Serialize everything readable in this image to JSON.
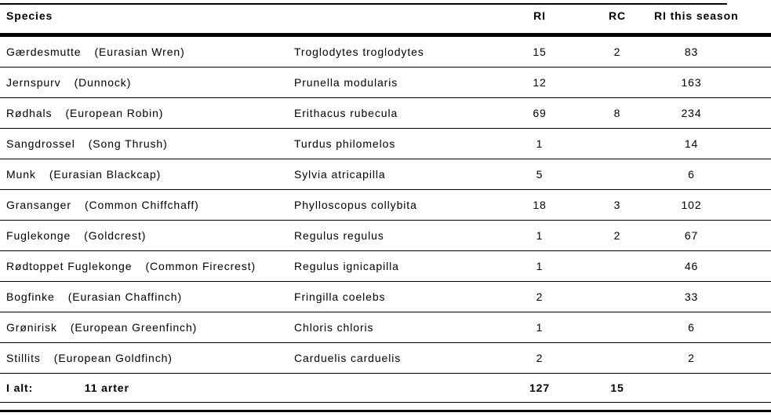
{
  "colors": {
    "background": "#ffffff",
    "text": "#000000",
    "rule": "#000000"
  },
  "table": {
    "columns": {
      "species": "Species",
      "scientific": "",
      "ri": "RI",
      "rc": "RC",
      "ri_season": "RI this season"
    },
    "rows": [
      {
        "danish": "Gærdesmutte",
        "english": "(Eurasian Wren)",
        "scientific": "Troglodytes troglodytes",
        "ri": "15",
        "rc": "2",
        "ri_season": "83"
      },
      {
        "danish": "Jernspurv",
        "english": "(Dunnock)",
        "scientific": "Prunella modularis",
        "ri": "12",
        "rc": "",
        "ri_season": "163"
      },
      {
        "danish": "Rødhals",
        "english": "(European Robin)",
        "scientific": "Erithacus rubecula",
        "ri": "69",
        "rc": "8",
        "ri_season": "234"
      },
      {
        "danish": "Sangdrossel",
        "english": "(Song Thrush)",
        "scientific": "Turdus philomelos",
        "ri": "1",
        "rc": "",
        "ri_season": "14"
      },
      {
        "danish": "Munk",
        "english": "(Eurasian Blackcap)",
        "scientific": "Sylvia atricapilla",
        "ri": "5",
        "rc": "",
        "ri_season": "6"
      },
      {
        "danish": "Gransanger",
        "english": "(Common Chiffchaff)",
        "scientific": "Phylloscopus collybita",
        "ri": "18",
        "rc": "3",
        "ri_season": "102"
      },
      {
        "danish": "Fuglekonge",
        "english": "(Goldcrest)",
        "scientific": "Regulus regulus",
        "ri": "1",
        "rc": "2",
        "ri_season": "67"
      },
      {
        "danish": "Rødtoppet Fuglekonge",
        "english": "(Common Firecrest)",
        "scientific": "Regulus ignicapilla",
        "ri": "1",
        "rc": "",
        "ri_season": "46"
      },
      {
        "danish": "Bogfinke",
        "english": "(Eurasian Chaffinch)",
        "scientific": "Fringilla coelebs",
        "ri": "2",
        "rc": "",
        "ri_season": "33"
      },
      {
        "danish": "Grønirisk",
        "english": "(European Greenfinch)",
        "scientific": "Chloris chloris",
        "ri": "1",
        "rc": "",
        "ri_season": "6"
      },
      {
        "danish": "Stillits",
        "english": "(European Goldfinch)",
        "scientific": "Carduelis carduelis",
        "ri": "2",
        "rc": "",
        "ri_season": "2"
      }
    ],
    "total": {
      "label": "I alt:",
      "species_count": "11 arter",
      "ri": "127",
      "rc": "15",
      "ri_season": ""
    }
  }
}
